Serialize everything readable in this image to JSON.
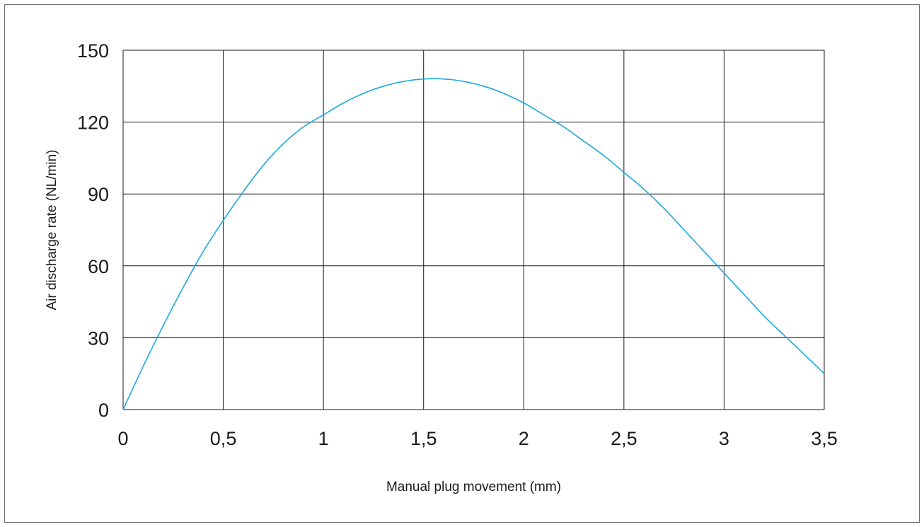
{
  "chart_data": {
    "type": "line",
    "title": "",
    "xlabel": "Manual plug movement (mm)",
    "ylabel": "Air discharge rate (NL/min)",
    "xlim": [
      0,
      3.5
    ],
    "ylim": [
      0,
      150
    ],
    "x_ticks": [
      0,
      0.5,
      1,
      1.5,
      2,
      2.5,
      3,
      3.5
    ],
    "x_tick_labels": [
      "0",
      "0,5",
      "1",
      "1,5",
      "2",
      "2,5",
      "3",
      "3,5"
    ],
    "y_ticks": [
      0,
      30,
      60,
      90,
      120,
      150
    ],
    "y_tick_labels": [
      "0",
      "30",
      "60",
      "90",
      "120",
      "150"
    ],
    "grid": true,
    "legend": "none",
    "series": [
      {
        "color": "#1ba9df",
        "x": [
          0,
          0.1,
          0.2,
          0.3,
          0.4,
          0.5,
          0.6,
          0.7,
          0.8,
          0.9,
          1.0,
          1.1,
          1.2,
          1.3,
          1.4,
          1.5,
          1.6,
          1.7,
          1.8,
          1.9,
          2.0,
          2.1,
          2.2,
          2.3,
          2.4,
          2.5,
          2.6,
          2.7,
          2.8,
          2.9,
          3.0,
          3.1,
          3.2,
          3.3,
          3.4,
          3.5
        ],
        "y": [
          0,
          18,
          35,
          51,
          66,
          79,
          91,
          102,
          111,
          118,
          123,
          128,
          132,
          135,
          137,
          138,
          138,
          137,
          135,
          132,
          128,
          123,
          118,
          112,
          106,
          99,
          92,
          84,
          75,
          66,
          57,
          48,
          39,
          31,
          23,
          15
        ]
      }
    ]
  }
}
